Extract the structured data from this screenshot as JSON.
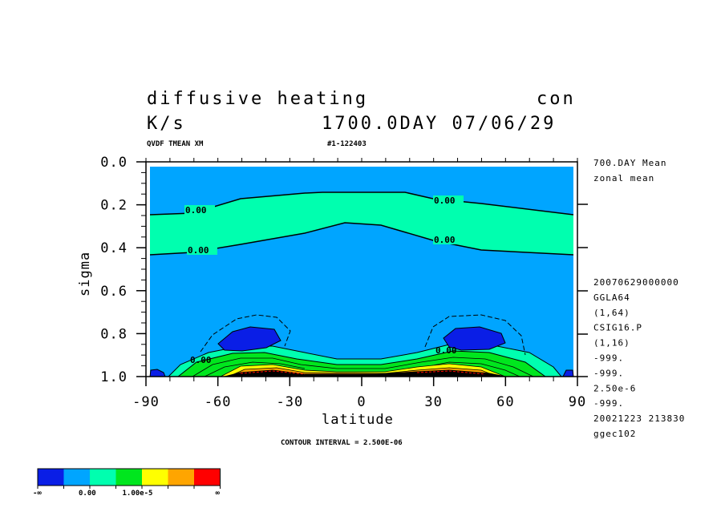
{
  "header": {
    "title": "diffusive heating",
    "title_right": "con",
    "units": "K/s",
    "time": "1700.0DAY 07/06/29",
    "var": "QVDF TMEAN XM",
    "run": "#1-122403"
  },
  "chart_data": {
    "type": "contour",
    "title": "diffusive heating",
    "xlabel": "latitude",
    "ylabel": "sigma",
    "xlim": [
      -90,
      90
    ],
    "ylim": [
      1.0,
      0.0
    ],
    "x_ticks": [
      "-90",
      "-60",
      "-30",
      "0",
      "30",
      "60",
      "90"
    ],
    "y_ticks": [
      "0.0",
      "0.2",
      "0.4",
      "0.6",
      "0.8",
      "1.0"
    ],
    "contour_interval_text": "CONTOUR INTERVAL = 2.500E-06",
    "contour_labels": [
      "0.00",
      "0.00",
      "0.00",
      "0.00",
      "0.00",
      "0.00"
    ],
    "zero_contour_upper": {
      "lat": [
        -90,
        -70,
        -55,
        -40,
        -20,
        -10,
        0,
        10,
        20,
        40,
        55,
        70,
        90
      ],
      "sigma": [
        0.25,
        0.24,
        0.21,
        0.19,
        0.18,
        0.15,
        0.15,
        0.15,
        0.16,
        0.19,
        0.21,
        0.23,
        0.25
      ]
    },
    "zero_contour_lower": {
      "lat": [
        -90,
        -70,
        -55,
        -40,
        -20,
        -10,
        0,
        10,
        20,
        40,
        55,
        70,
        90
      ],
      "sigma": [
        0.43,
        0.42,
        0.4,
        0.36,
        0.32,
        0.29,
        0.29,
        0.29,
        0.32,
        0.36,
        0.4,
        0.42,
        0.43
      ]
    },
    "colorbar": {
      "colors": [
        "#0a1ee6",
        "#00a5ff",
        "#00ffaf",
        "#00e61e",
        "#ffff00",
        "#ffa500",
        "#ff0000"
      ],
      "labels": [
        "-∞",
        "0.00",
        "1.00e-5",
        "∞"
      ]
    }
  },
  "side_info": {
    "mean": "700.DAY Mean",
    "zonal": "zonal mean",
    "lines": [
      "20070629000000",
      "GGLA64",
      "(1,64)",
      "CSIG16.P",
      "(1,16)",
      "-999.",
      "-999.",
      "2.50e-6",
      "-999.",
      "20021223 213830",
      "ggec102"
    ]
  }
}
